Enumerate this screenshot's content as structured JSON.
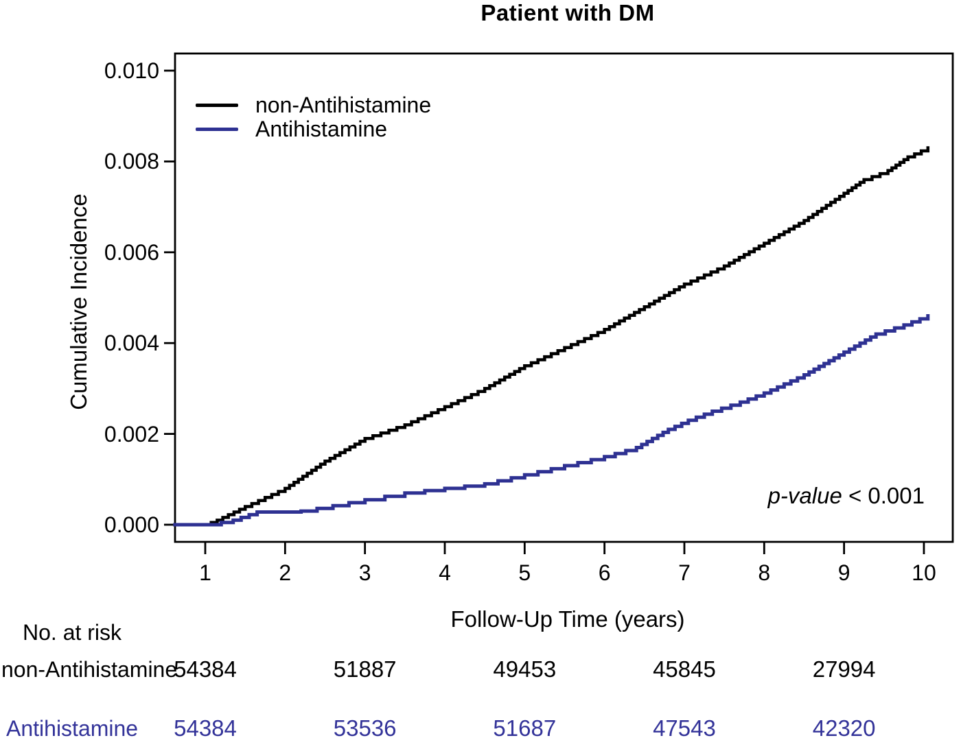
{
  "title": "Patient with DM",
  "annotation": {
    "p_italic": "p-value",
    "p_rest": " < 0.001"
  },
  "colors": {
    "non_antihistamine": "#000000",
    "antihistamine": "#2e3192",
    "table_blue": "#333399",
    "axis": "#000000",
    "background": "#ffffff"
  },
  "chart_data": {
    "type": "line",
    "curve_style": "step",
    "title": "Patient with DM",
    "xlabel": "Follow-Up Time (years)",
    "ylabel": "Cumulative Incidence",
    "xlim": [
      0.62,
      10.1
    ],
    "ylim": [
      0,
      0.01
    ],
    "grid": false,
    "legend_position": "top-left-inside",
    "x_ticks": [
      "1",
      "2",
      "3",
      "4",
      "5",
      "6",
      "7",
      "8",
      "9",
      "10"
    ],
    "x_tick_values": [
      1,
      2,
      3,
      4,
      5,
      6,
      7,
      8,
      9,
      10
    ],
    "y_ticks": [
      "0.000",
      "0.002",
      "0.004",
      "0.006",
      "0.008",
      "0.010"
    ],
    "y_tick_values": [
      0,
      0.002,
      0.004,
      0.006,
      0.008,
      0.01
    ],
    "annotation": "p-value < 0.001",
    "series": [
      {
        "name": "non-Antihistamine",
        "color": "#000000",
        "x": [
          0.62,
          1.0,
          1.15,
          1.5,
          2.0,
          2.5,
          3.0,
          3.5,
          4.0,
          4.5,
          5.0,
          5.5,
          6.0,
          6.5,
          7.0,
          7.5,
          8.0,
          8.5,
          9.0,
          9.25,
          9.55,
          9.8,
          10.05
        ],
        "y": [
          0,
          0,
          0.0001,
          0.0004,
          0.0008,
          0.0014,
          0.0019,
          0.0022,
          0.0026,
          0.003,
          0.0035,
          0.0039,
          0.0043,
          0.0048,
          0.0053,
          0.0057,
          0.0062,
          0.0067,
          0.0073,
          0.0076,
          0.0078,
          0.0081,
          0.0083
        ]
      },
      {
        "name": "Antihistamine",
        "color": "#2e3192",
        "x": [
          0.62,
          1.05,
          1.35,
          1.65,
          2.2,
          2.6,
          3.0,
          3.5,
          4.0,
          4.5,
          5.0,
          5.5,
          6.0,
          6.4,
          6.8,
          7.05,
          7.35,
          7.7,
          8.0,
          8.5,
          9.0,
          9.4,
          9.75,
          10.05
        ],
        "y": [
          0,
          0,
          0.0001,
          0.00028,
          0.0003,
          0.00042,
          0.00055,
          0.0007,
          0.0008,
          0.0009,
          0.0011,
          0.0013,
          0.0015,
          0.0017,
          0.0021,
          0.0023,
          0.0025,
          0.0027,
          0.0029,
          0.0033,
          0.0038,
          0.0042,
          0.0044,
          0.0046
        ]
      }
    ]
  },
  "risk_table": {
    "header": "No. at risk",
    "time_points": [
      1,
      3,
      5,
      7,
      9
    ],
    "rows": [
      {
        "label": "non-Antihistamine",
        "color": "#000000",
        "values": [
          "54384",
          "51887",
          "49453",
          "45845",
          "27994"
        ]
      },
      {
        "label": "Antihistamine",
        "color": "#333399",
        "values": [
          "54384",
          "53536",
          "51687",
          "47543",
          "42320"
        ]
      }
    ]
  }
}
